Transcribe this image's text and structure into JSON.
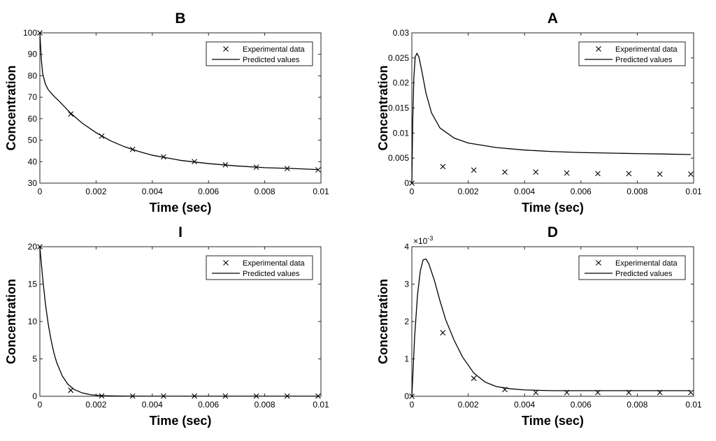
{
  "chart_data": [
    {
      "type": "line",
      "title": "B",
      "xlabel": "Time (sec)",
      "ylabel": "Concentration",
      "xlim": [
        0,
        0.01
      ],
      "ylim": [
        30,
        100
      ],
      "xticks": [
        0,
        0.002,
        0.004,
        0.006,
        0.008,
        0.01
      ],
      "xtick_labels": [
        "0",
        "0.002",
        "0.004",
        "0.006",
        "0.008",
        "0.01"
      ],
      "yticks": [
        30,
        40,
        50,
        60,
        70,
        80,
        90,
        100
      ],
      "ytick_labels": [
        "30",
        "40",
        "50",
        "60",
        "70",
        "80",
        "90",
        "100"
      ],
      "legend": {
        "position": "top-right",
        "entries": [
          "Experimental data",
          "Predicted values"
        ]
      },
      "series": [
        {
          "name": "Experimental data",
          "marker": "x",
          "x": [
            0,
            0.0011,
            0.0022,
            0.0033,
            0.0044,
            0.0055,
            0.0066,
            0.0077,
            0.0088,
            0.0099
          ],
          "y": [
            100,
            62.2,
            51.9,
            45.7,
            42.2,
            40.0,
            38.5,
            37.4,
            36.8,
            36.2
          ]
        },
        {
          "name": "Predicted values",
          "line": "solid",
          "x": [
            0,
            5e-05,
            0.0001,
            0.0002,
            0.0003,
            0.0005,
            0.0007,
            0.0011,
            0.0015,
            0.002,
            0.0025,
            0.003,
            0.0035,
            0.004,
            0.005,
            0.006,
            0.007,
            0.008,
            0.009,
            0.0099
          ],
          "y": [
            100,
            88,
            81,
            76,
            73.5,
            70.5,
            68.0,
            62.5,
            58.0,
            53.5,
            49.8,
            47.0,
            44.8,
            43.0,
            40.6,
            39.1,
            38.0,
            37.2,
            36.8,
            36.3
          ]
        }
      ]
    },
    {
      "type": "line",
      "title": "A",
      "xlabel": "Time (sec)",
      "ylabel": "Concentration",
      "xlim": [
        0,
        0.01
      ],
      "ylim": [
        0,
        0.03
      ],
      "xticks": [
        0,
        0.002,
        0.004,
        0.006,
        0.008,
        0.01
      ],
      "xtick_labels": [
        "0",
        "0.002",
        "0.004",
        "0.006",
        "0.008",
        "0.01"
      ],
      "yticks": [
        0,
        0.005,
        0.01,
        0.015,
        0.02,
        0.025,
        0.03
      ],
      "ytick_labels": [
        "0",
        "0.005",
        "0.01",
        "0.015",
        "0.02",
        "0.025",
        "0.03"
      ],
      "legend": {
        "position": "top-right",
        "entries": [
          "Experimental data",
          "Predicted values"
        ]
      },
      "series": [
        {
          "name": "Experimental data",
          "marker": "x",
          "x": [
            0,
            0.0011,
            0.0022,
            0.0033,
            0.0044,
            0.0055,
            0.0066,
            0.0077,
            0.0088,
            0.0099
          ],
          "y": [
            0,
            0.0033,
            0.0026,
            0.0022,
            0.0022,
            0.002,
            0.0019,
            0.0019,
            0.0018,
            0.0018
          ]
        },
        {
          "name": "Predicted values",
          "line": "solid",
          "x": [
            0,
            3e-05,
            7e-05,
            0.00012,
            0.00018,
            0.00025,
            0.00035,
            0.0005,
            0.0007,
            0.001,
            0.0015,
            0.002,
            0.003,
            0.004,
            0.005,
            0.006,
            0.007,
            0.008,
            0.009,
            0.0099
          ],
          "y": [
            0,
            0.012,
            0.021,
            0.0252,
            0.0259,
            0.0252,
            0.0225,
            0.018,
            0.014,
            0.011,
            0.009,
            0.008,
            0.0071,
            0.0066,
            0.0063,
            0.0061,
            0.006,
            0.0059,
            0.0058,
            0.0057
          ]
        }
      ]
    },
    {
      "type": "line",
      "title": "I",
      "xlabel": "Time (sec)",
      "ylabel": "Concentration",
      "xlim": [
        0,
        0.01
      ],
      "ylim": [
        0,
        20
      ],
      "xticks": [
        0,
        0.002,
        0.004,
        0.006,
        0.008,
        0.01
      ],
      "xtick_labels": [
        "0",
        "0.002",
        "0.004",
        "0.006",
        "0.008",
        "0.01"
      ],
      "yticks": [
        0,
        5,
        10,
        15,
        20
      ],
      "ytick_labels": [
        "0",
        "5",
        "10",
        "15",
        "20"
      ],
      "legend": {
        "position": "top-right",
        "entries": [
          "Experimental data",
          "Predicted values"
        ]
      },
      "series": [
        {
          "name": "Experimental data",
          "marker": "x",
          "x": [
            0,
            0.0011,
            0.0022,
            0.0033,
            0.0044,
            0.0055,
            0.0066,
            0.0077,
            0.0088,
            0.0099
          ],
          "y": [
            20,
            0.8,
            0.05,
            0.02,
            0.02,
            0.02,
            0.02,
            0.02,
            0.02,
            0.02
          ]
        },
        {
          "name": "Predicted values",
          "line": "solid",
          "x": [
            0,
            0.0001,
            0.0002,
            0.0003,
            0.0004,
            0.0005,
            0.0006,
            0.0008,
            0.001,
            0.0012,
            0.0015,
            0.0018,
            0.0022,
            0.0026,
            0.003,
            0.004,
            0.006,
            0.008,
            0.0099
          ],
          "y": [
            20,
            15.8,
            12.3,
            9.6,
            7.5,
            5.8,
            4.5,
            2.7,
            1.6,
            0.95,
            0.45,
            0.21,
            0.08,
            0.04,
            0.02,
            0.01,
            0.01,
            0.01,
            0.01
          ]
        }
      ]
    },
    {
      "type": "line",
      "title": "D",
      "xlabel": "Time (sec)",
      "ylabel": "Concentration",
      "axis_multiplier": "×10^-3",
      "xlim": [
        0,
        0.01
      ],
      "ylim": [
        0,
        4
      ],
      "xticks": [
        0,
        0.002,
        0.004,
        0.006,
        0.008,
        0.01
      ],
      "xtick_labels": [
        "0",
        "0.002",
        "0.004",
        "0.006",
        "0.008",
        "0.01"
      ],
      "yticks": [
        0,
        1,
        2,
        3,
        4
      ],
      "ytick_labels": [
        "0",
        "1",
        "2",
        "3",
        "4"
      ],
      "legend": {
        "position": "top-right",
        "entries": [
          "Experimental data",
          "Predicted values"
        ]
      },
      "series": [
        {
          "name": "Experimental data",
          "marker": "x",
          "x": [
            0,
            0.0011,
            0.0022,
            0.0033,
            0.0044,
            0.0055,
            0.0066,
            0.0077,
            0.0088,
            0.0099
          ],
          "y": [
            0,
            1.7,
            0.48,
            0.18,
            0.1,
            0.1,
            0.1,
            0.1,
            0.1,
            0.1
          ]
        },
        {
          "name": "Predicted values",
          "line": "solid",
          "x": [
            0,
            0.0001,
            0.0002,
            0.0003,
            0.0004,
            0.0005,
            0.0006,
            0.0008,
            0.001,
            0.0012,
            0.0015,
            0.0018,
            0.0022,
            0.0026,
            0.003,
            0.0035,
            0.004,
            0.005,
            0.006,
            0.008,
            0.0099
          ],
          "y": [
            0,
            1.6,
            2.7,
            3.35,
            3.65,
            3.67,
            3.55,
            3.1,
            2.55,
            2.05,
            1.5,
            1.05,
            0.62,
            0.38,
            0.26,
            0.2,
            0.17,
            0.15,
            0.15,
            0.15,
            0.15
          ]
        }
      ]
    }
  ]
}
